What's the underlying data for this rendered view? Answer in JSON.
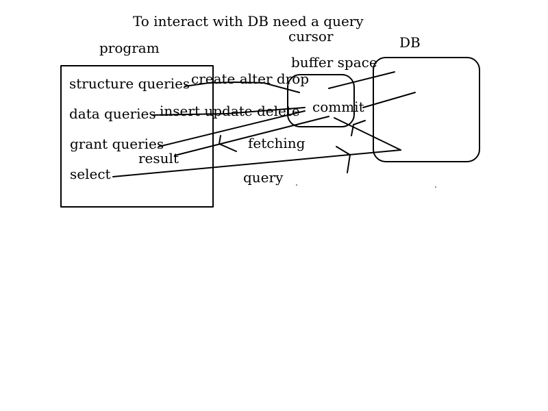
{
  "title": "To interact with DB need a query",
  "program": {
    "label": "program",
    "items": {
      "structure": "structure queries",
      "data": "data queries",
      "grant": "grant queries",
      "select": "select"
    }
  },
  "cursor": {
    "label": "cursor",
    "buffer_label": "buffer space",
    "commit_label": "commit"
  },
  "db": {
    "label": "DB"
  },
  "edge_labels": {
    "structure_ops": "create alter drop",
    "data_ops": "insert update delete",
    "result": "result",
    "fetching": "fetching",
    "query": "query"
  }
}
